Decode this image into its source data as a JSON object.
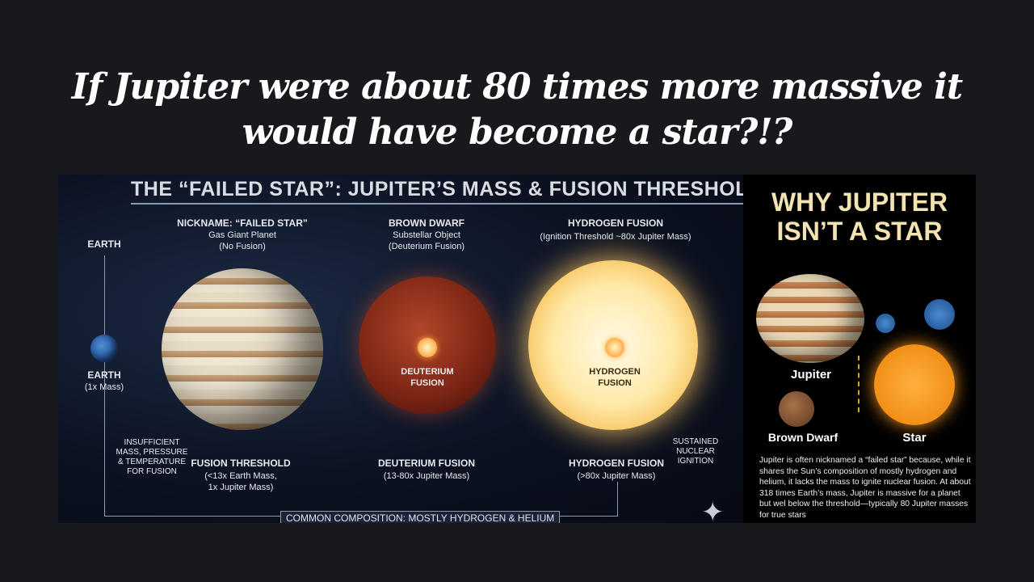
{
  "headline": {
    "line1": "If Jupiter were about 80 times more massive it",
    "line2": "would have become a star?!?"
  },
  "infographic": {
    "title": "THE “FAILED STAR”: JUPITER’S MASS & FUSION THRESHOLD",
    "earth_top": "EARTH",
    "earth_label": "EARTH",
    "earth_mass": "(1x Mass)",
    "jupiter_heading": "NICKNAME: “FAILED STAR”",
    "jupiter_sub1": "Gas Giant Planet",
    "jupiter_sub2": "(No Fusion)",
    "bd_heading": "BROWN DWARF",
    "bd_sub1": "Substellar Object",
    "bd_sub2": "(Deuterium Fusion)",
    "star_heading": "HYDROGEN FUSION",
    "star_sub1": "(Ignition Threshold ~80x Jupiter Mass)",
    "bd_core_1": "DEUTERIUM",
    "bd_core_2": "FUSION",
    "star_core_1": "HYDROGEN",
    "star_core_2": "FUSION",
    "insufficient": [
      "INSUFFICIENT",
      "MASS, PRESSURE",
      "& TEMPERATURE",
      "FOR FUSION"
    ],
    "fusion_threshold": "FUSION THRESHOLD",
    "ft_sub1": "(<13x Earth Mass,",
    "ft_sub2": "1x Jupiter Mass)",
    "deut": "DEUTERIUM FUSION",
    "deut_sub": "(13-80x Jupiter Mass)",
    "hyd": "HYDROGEN FUSION",
    "hyd_sub": "(>80x Jupiter Mass)",
    "sustained": [
      "SUSTAINED",
      "NUCLEAR",
      "IGNITION"
    ],
    "composition": "COMMON COMPOSITION: MOSTLY HYDROGEN & HELIUM"
  },
  "side": {
    "title1": "WHY JUPITER",
    "title2": "ISN’T A STAR",
    "jupiter": "Jupiter",
    "brown_dwarf": "Brown Dwarf",
    "star": "Star",
    "text": "Jupiter is often nicknamed a “failed star” because, while it shares the Sun’s composition of mostly hydrogen and helium, it lacks the mass to ignite nuclear fusion. At about 318 times Earth’s mass, Jupiter is massive for a planet but wel below the threshold—typically 80 Jupiter masses for true stars"
  }
}
